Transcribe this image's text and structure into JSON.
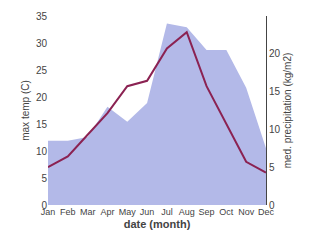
{
  "chart_data": {
    "type": "line",
    "xlabel": "date (month)",
    "ylabel": "max temp (C)",
    "y2label": "med. precipitation (kg/m2)",
    "categories": [
      "Jan",
      "Feb",
      "Mar",
      "Apr",
      "May",
      "Jun",
      "Jul",
      "Aug",
      "Sep",
      "Oct",
      "Nov",
      "Dec"
    ],
    "series": [
      {
        "type": "area",
        "color": "#b3b9e8",
        "axis": "y2",
        "values": [
          8.5,
          8.5,
          9,
          13,
          11,
          13.5,
          24,
          23.5,
          20.5,
          20.5,
          15.5,
          7.5
        ]
      },
      {
        "type": "line",
        "color": "#8B2252",
        "values": [
          7,
          9,
          13,
          17,
          22,
          23,
          29,
          32,
          22,
          15,
          8,
          6
        ]
      }
    ],
    "ylim": [
      0,
      35
    ],
    "yticks": [
      0,
      5,
      10,
      15,
      20,
      25,
      30,
      35
    ],
    "y2lim": [
      0,
      25
    ],
    "y2ticks": [
      0,
      5,
      10,
      15,
      20
    ],
    "grid": false
  }
}
